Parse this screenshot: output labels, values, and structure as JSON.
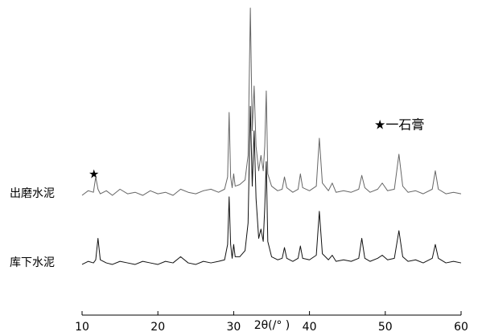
{
  "chart_data": {
    "type": "line",
    "x_label": "2θ(/°  )",
    "annotations": [
      "★一石膏",
      "★"
    ],
    "x": [
      10,
      10.8,
      11.5,
      11.8,
      12.1,
      12.4,
      13.2,
      14,
      15,
      16,
      17,
      18,
      19,
      20,
      21,
      22,
      23,
      24,
      25,
      26,
      27,
      28,
      28.8,
      29.2,
      29.4,
      29.6,
      29.8,
      30.0,
      30.2,
      30.8,
      31.5,
      31.9,
      32.2,
      32.45,
      32.7,
      32.95,
      33.3,
      33.6,
      33.9,
      34.1,
      34.3,
      34.5,
      35,
      35.8,
      36.4,
      36.7,
      37,
      37.8,
      38.5,
      38.8,
      39.1,
      40,
      40.9,
      41.3,
      41.7,
      42.5,
      43,
      43.5,
      44.5,
      45.5,
      46.5,
      46.9,
      47.3,
      48,
      49,
      49.6,
      50.3,
      51.2,
      51.8,
      52.3,
      53,
      54,
      55,
      56.2,
      56.6,
      57,
      58,
      59,
      60
    ],
    "series": [
      {
        "name": "出磨水泥",
        "color": "#666666",
        "values": [
          39,
          40.5,
          40,
          45,
          41,
          39.5,
          40.5,
          39,
          41,
          39.5,
          40,
          39,
          40.5,
          39.5,
          40,
          39,
          41,
          40,
          39.5,
          40.5,
          41,
          40,
          41,
          45,
          66,
          45,
          41.5,
          46,
          42,
          42.5,
          44,
          52,
          100,
          60,
          74.6,
          55,
          47,
          52,
          47,
          55,
          73,
          46,
          42,
          40.5,
          41,
          45,
          41.5,
          40,
          41,
          46,
          41.5,
          40.5,
          42,
          57.6,
          43,
          40.5,
          43,
          40,
          40.5,
          40,
          41,
          45.5,
          41.5,
          40,
          41,
          43,
          40.5,
          41,
          52.4,
          42,
          40,
          40.5,
          39.5,
          41,
          47,
          41,
          39.5,
          40,
          39.5
        ]
      },
      {
        "name": "库下水泥",
        "color": "#111111",
        "values": [
          16.5,
          17.5,
          17,
          18,
          25,
          18,
          17,
          16.5,
          17.5,
          17,
          16.5,
          17.5,
          17,
          16.5,
          17.5,
          17,
          19,
          17,
          16.5,
          17.5,
          17,
          17.5,
          18,
          23,
          38.5,
          23,
          18.5,
          23,
          19,
          19,
          21,
          30,
          68,
          42,
          60,
          38,
          25,
          28,
          24,
          35,
          50,
          24,
          19,
          18,
          18.5,
          22,
          18.5,
          17.5,
          18.5,
          22.5,
          18.5,
          18,
          19.5,
          33.8,
          20,
          18,
          19.5,
          17.5,
          18,
          17.5,
          18.5,
          25,
          18.5,
          17.5,
          18.5,
          19.5,
          18,
          18.5,
          27.5,
          19,
          17.5,
          18,
          17,
          18.5,
          23,
          18.5,
          17,
          17.5,
          17
        ]
      }
    ],
    "xlim": [
      10,
      60
    ],
    "ylim": [
      0,
      100
    ],
    "xticks": [
      10,
      20,
      30,
      40,
      50,
      60
    ]
  }
}
